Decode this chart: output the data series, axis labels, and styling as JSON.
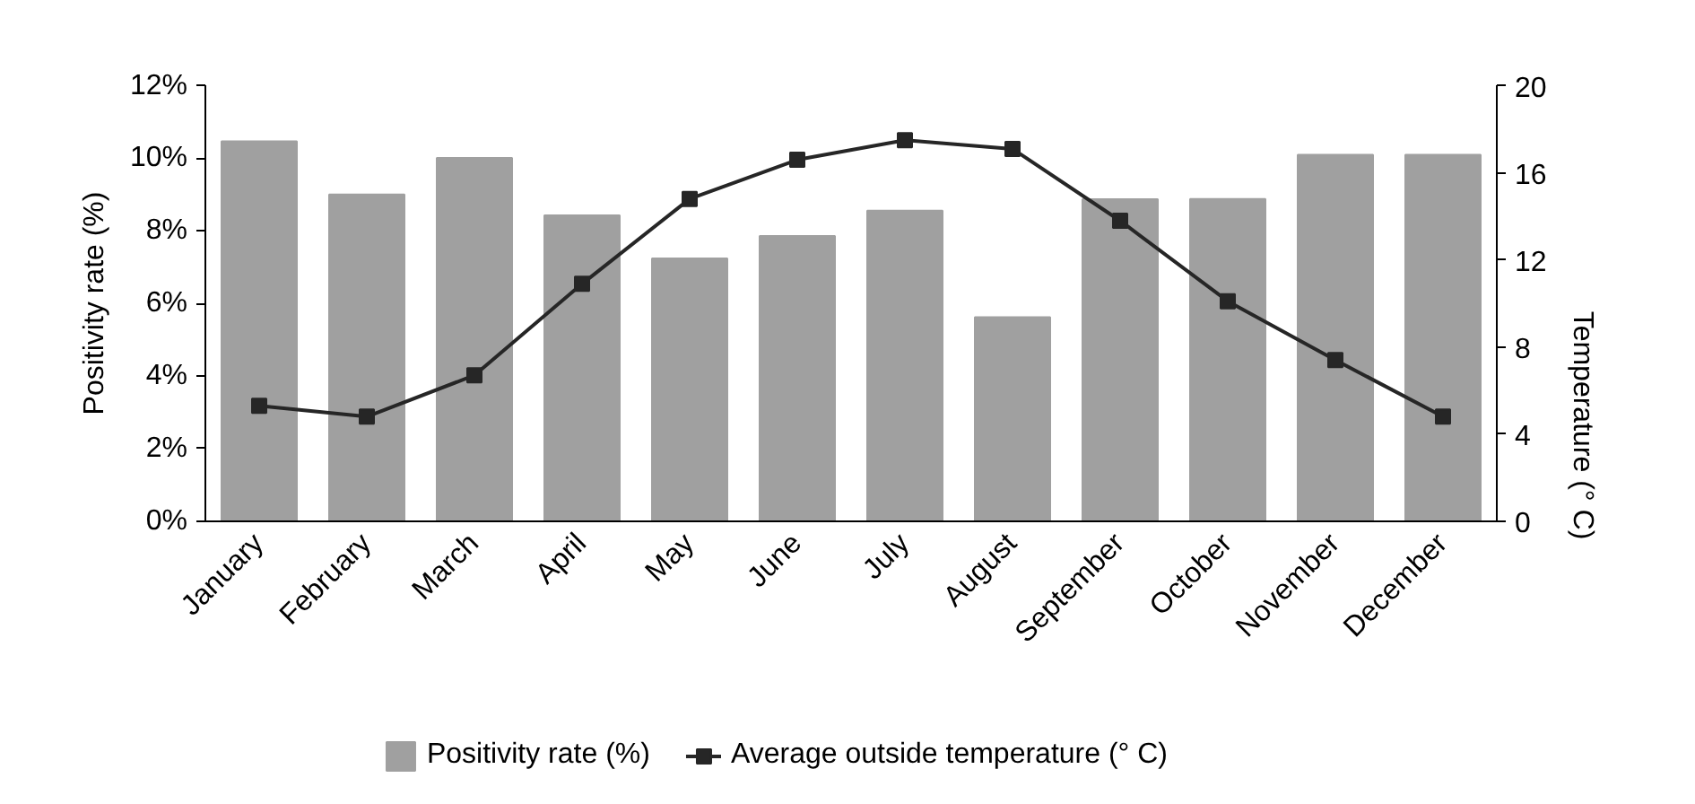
{
  "chart_data": {
    "type": "bar",
    "categories": [
      "January",
      "February",
      "March",
      "April",
      "May",
      "June",
      "July",
      "August",
      "September",
      "October",
      "November",
      "December"
    ],
    "series": [
      {
        "name": "Positivity rate (%)",
        "color": "#a0a0a0",
        "values": [
          10.47,
          9.0,
          10.01,
          8.43,
          7.24,
          7.86,
          8.56,
          5.62,
          8.87,
          8.88,
          10.1,
          10.1
        ]
      },
      {
        "name": "Average outside temperature (° C)",
        "type": "line",
        "axis": "y2",
        "color": "#262626",
        "marker": "square",
        "values": [
          5.3,
          4.8,
          6.7,
          10.9,
          14.8,
          16.6,
          17.5,
          17.1,
          13.8,
          10.1,
          7.4,
          4.8
        ]
      }
    ],
    "ylabel": "Positivity rate (%)",
    "y2label": "Temperature (° C)",
    "ylim": [
      0,
      12
    ],
    "yticks": [
      {
        "value": 0,
        "label": "0%"
      },
      {
        "value": 2,
        "label": "2%"
      },
      {
        "value": 4,
        "label": "4%"
      },
      {
        "value": 6,
        "label": "6%"
      },
      {
        "value": 8,
        "label": "8%"
      },
      {
        "value": 10,
        "label": "10%"
      },
      {
        "value": 12,
        "label": "12%"
      }
    ],
    "y2lim": [
      0,
      20
    ],
    "y2ticks": [
      0,
      4,
      8,
      12,
      16,
      20
    ],
    "legend": "bottom",
    "grid": false
  }
}
